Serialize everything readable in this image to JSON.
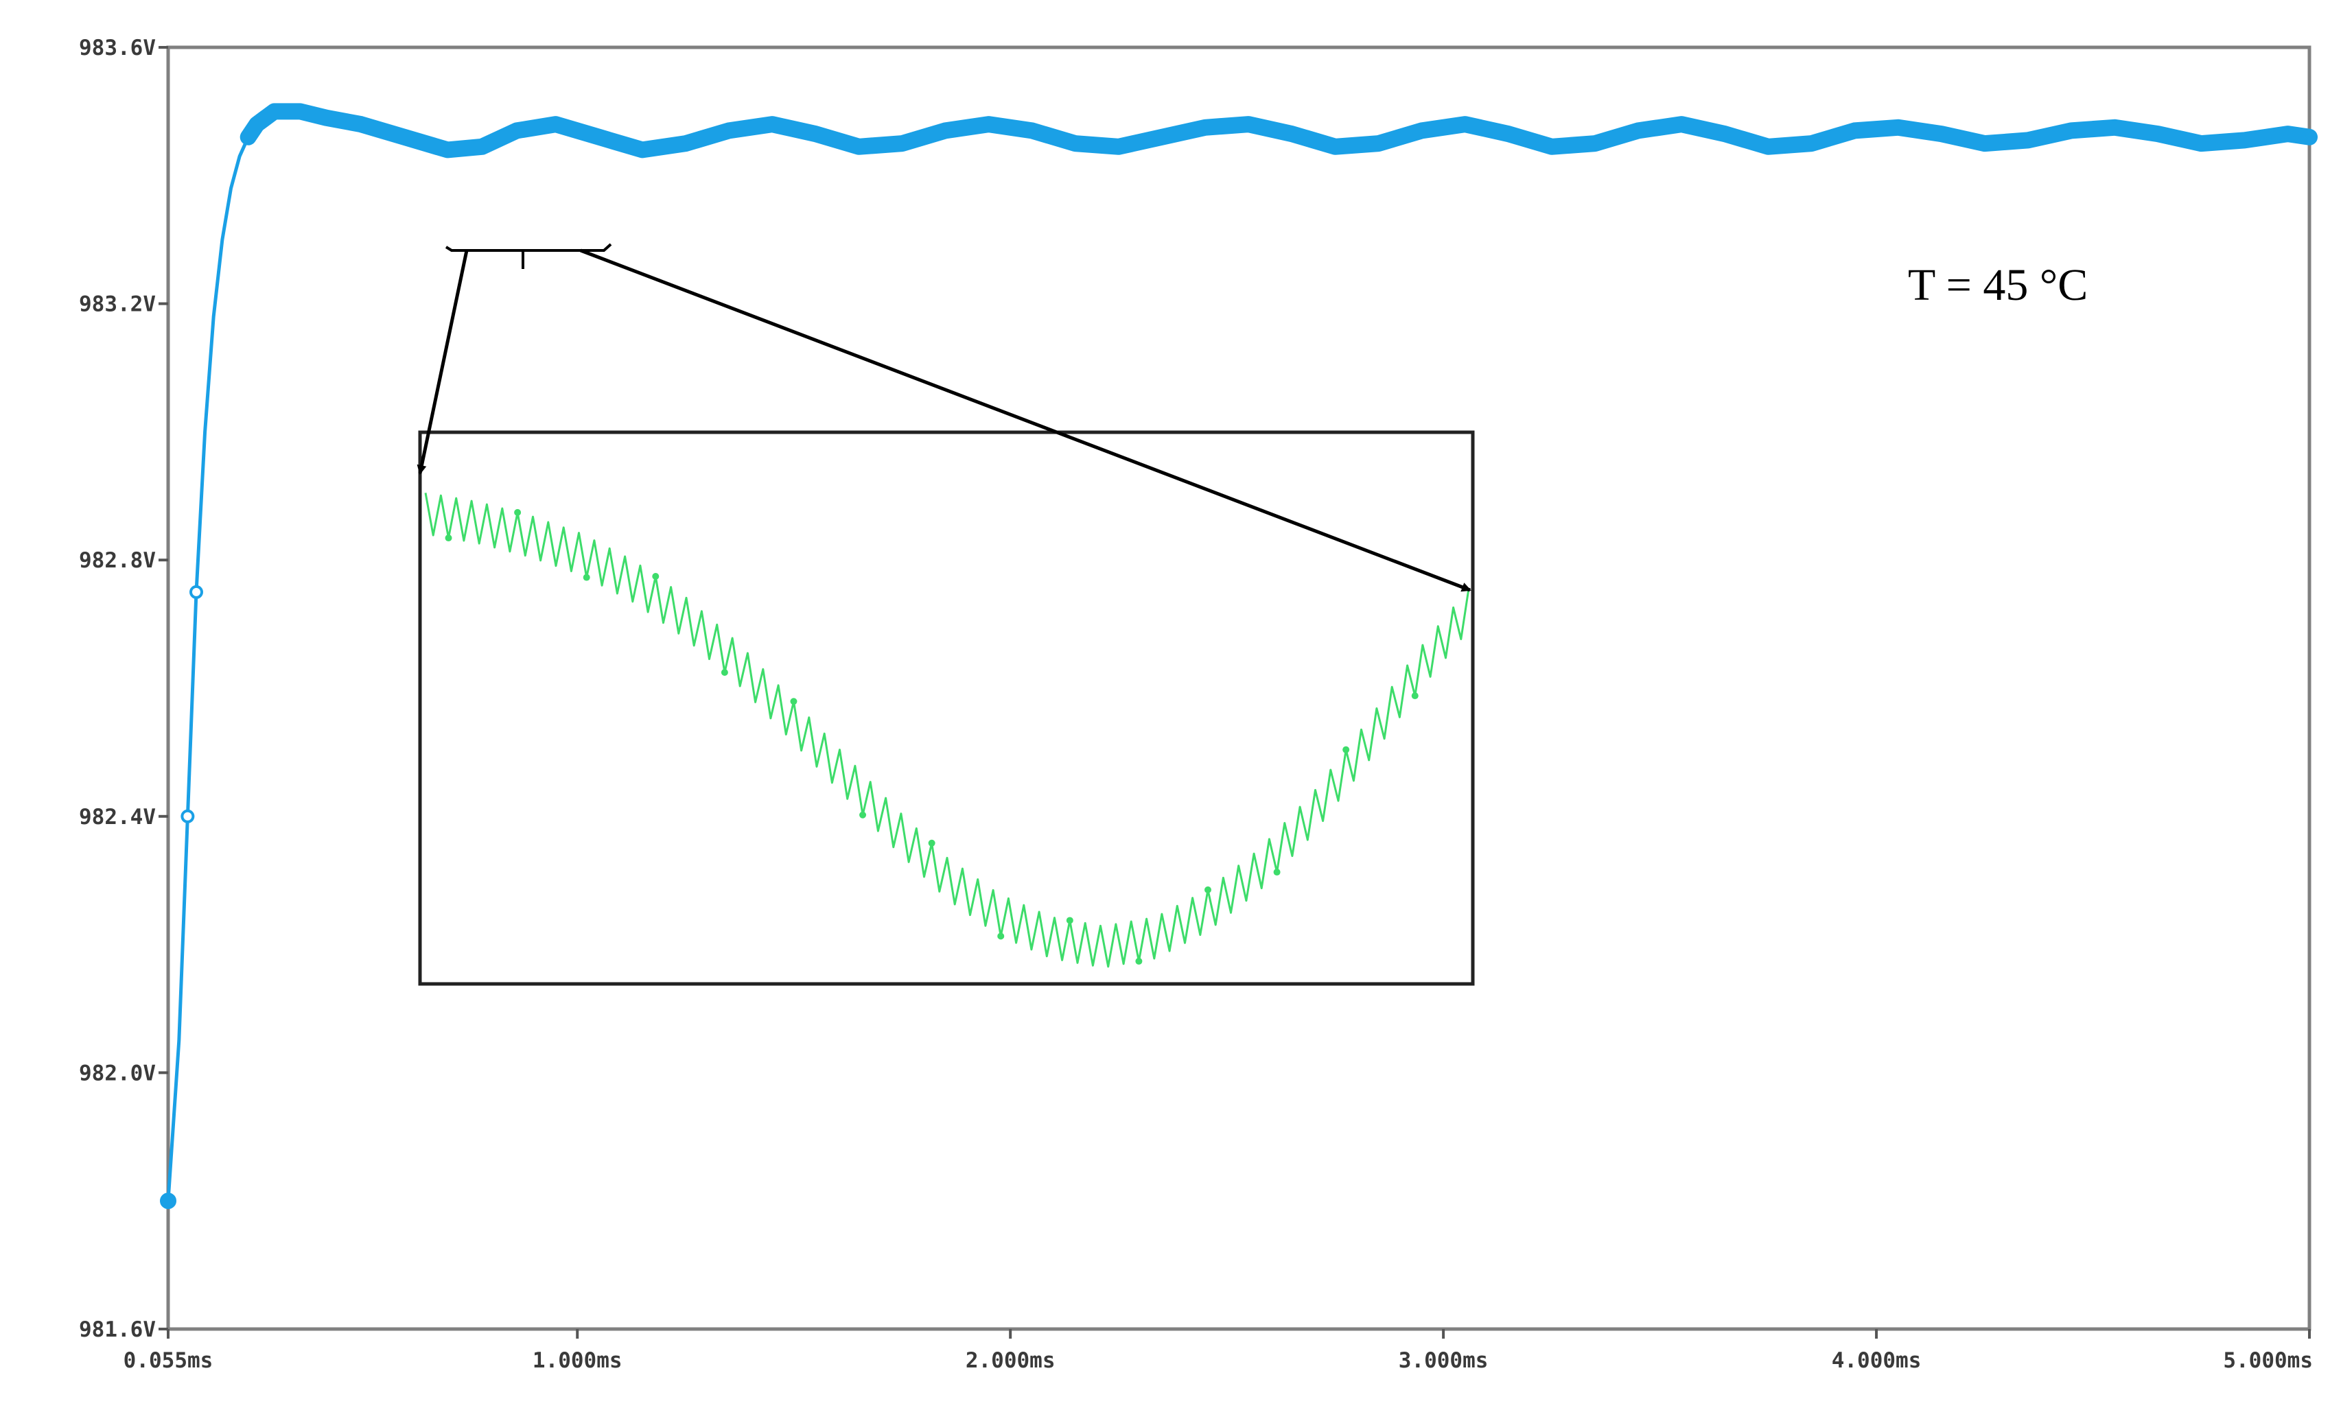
{
  "chart_data": {
    "type": "line",
    "title": "",
    "xlabel": "",
    "ylabel": "",
    "annotation": "T = 45 °C",
    "x_ticks": [
      "0.055ms",
      "1.000ms",
      "2.000ms",
      "3.000ms",
      "4.000ms",
      "5.000ms"
    ],
    "x_tick_values": [
      0.055,
      1.0,
      2.0,
      3.0,
      4.0,
      5.0
    ],
    "y_ticks": [
      "983.6V",
      "983.2V",
      "982.8V",
      "982.4V",
      "982.0V",
      "981.6V"
    ],
    "y_tick_values": [
      983.6,
      983.2,
      982.8,
      982.4,
      982.0,
      981.6
    ],
    "xlim": [
      0.055,
      5.0
    ],
    "ylim": [
      981.6,
      983.6
    ],
    "grid": false,
    "series": [
      {
        "color": "#1aa0e6",
        "x": [
          0.055,
          0.08,
          0.1,
          0.12,
          0.14,
          0.16,
          0.18,
          0.2,
          0.22,
          0.24,
          0.26,
          0.28,
          0.3,
          0.32,
          0.36,
          0.42,
          0.5,
          0.6,
          0.7,
          0.78,
          0.86,
          0.95,
          1.05,
          1.15,
          1.25,
          1.35,
          1.45,
          1.55,
          1.65,
          1.75,
          1.85,
          1.95,
          2.05,
          2.15,
          2.25,
          2.35,
          2.45,
          2.55,
          2.65,
          2.75,
          2.85,
          2.95,
          3.05,
          3.15,
          3.25,
          3.35,
          3.45,
          3.55,
          3.65,
          3.75,
          3.85,
          3.95,
          4.05,
          4.15,
          4.25,
          4.35,
          4.45,
          4.55,
          4.65,
          4.75,
          4.85,
          4.95,
          5.0
        ],
        "y": [
          981.8,
          982.05,
          982.4,
          982.75,
          983.0,
          983.18,
          983.3,
          983.38,
          983.43,
          983.46,
          983.48,
          983.49,
          983.5,
          983.5,
          983.5,
          983.49,
          983.48,
          983.46,
          983.44,
          983.445,
          983.47,
          983.48,
          983.46,
          983.44,
          983.45,
          983.47,
          983.48,
          983.465,
          983.445,
          983.45,
          983.47,
          983.48,
          983.47,
          983.45,
          983.445,
          983.46,
          983.475,
          983.48,
          983.465,
          983.445,
          983.45,
          983.47,
          983.48,
          983.465,
          983.445,
          983.45,
          983.47,
          983.48,
          983.465,
          983.445,
          983.45,
          983.47,
          983.475,
          983.465,
          983.45,
          983.455,
          983.47,
          983.475,
          983.465,
          983.45,
          983.455,
          983.465,
          983.46
        ]
      }
    ],
    "inset": {
      "color": "#3ddc6a",
      "description_source_range_x": [
        0.7,
        1.05
      ],
      "y": [
        0.95,
        0.93,
        0.9,
        0.86,
        0.8,
        0.72,
        0.62,
        0.5,
        0.38,
        0.26,
        0.15,
        0.07,
        0.02,
        0.0,
        0.02,
        0.08,
        0.17,
        0.29,
        0.44,
        0.6,
        0.74
      ]
    }
  }
}
